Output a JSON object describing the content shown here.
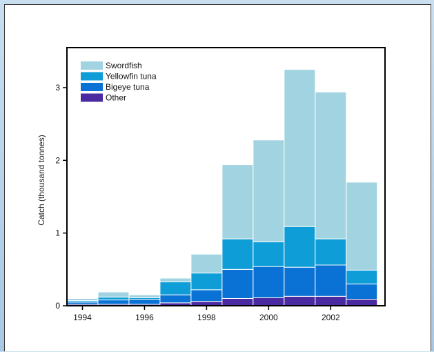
{
  "chart_data": {
    "type": "bar",
    "stacked": true,
    "title": "",
    "xlabel": "",
    "ylabel": "Catch (thousand tonnes)",
    "x": [
      1994,
      1995,
      1996,
      1997,
      1998,
      1999,
      2000,
      2001,
      2002,
      2003
    ],
    "xticks": [
      "1994",
      "1996",
      "1998",
      "2000",
      "2002"
    ],
    "xtick_values": [
      1994,
      1996,
      1998,
      2000,
      2002
    ],
    "yticks": [
      "0",
      "1",
      "2",
      "3"
    ],
    "ytick_values": [
      0,
      1,
      2,
      3
    ],
    "xlim": [
      1993.5,
      2003.75
    ],
    "ylim": [
      0,
      3.55
    ],
    "grid": false,
    "legend_position": "top-left",
    "series": [
      {
        "name": "Other",
        "color": "#4a2aa0",
        "values": [
          0.02,
          0.02,
          0.02,
          0.04,
          0.06,
          0.1,
          0.11,
          0.13,
          0.13,
          0.09
        ]
      },
      {
        "name": "Bigeye tuna",
        "color": "#0a72d4",
        "values": [
          0.03,
          0.06,
          0.07,
          0.11,
          0.16,
          0.4,
          0.43,
          0.4,
          0.43,
          0.21
        ]
      },
      {
        "name": "Yellowfin tuna",
        "color": "#0e9dd6",
        "values": [
          0.02,
          0.04,
          0.02,
          0.18,
          0.23,
          0.42,
          0.34,
          0.56,
          0.36,
          0.19
        ]
      },
      {
        "name": "Swordfish",
        "color": "#a2d3e1",
        "values": [
          0.03,
          0.07,
          0.04,
          0.05,
          0.26,
          1.02,
          1.4,
          2.16,
          2.02,
          1.21
        ]
      }
    ],
    "legend_order": [
      "Swordfish",
      "Yellowfin tuna",
      "Bigeye tuna",
      "Other"
    ]
  }
}
